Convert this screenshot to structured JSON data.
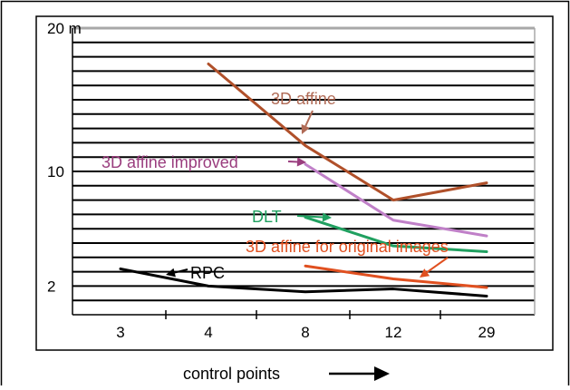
{
  "chart_data": {
    "type": "line",
    "categories": [
      "3",
      "4",
      "8",
      "12",
      "29"
    ],
    "y_ticks": [
      {
        "value": 2,
        "label": "2"
      },
      {
        "value": 10,
        "label": "10"
      },
      {
        "value": 20,
        "label": "20 m"
      }
    ],
    "ylim": [
      0,
      20
    ],
    "y_gridlines": [
      1,
      2,
      3,
      4,
      5,
      6,
      7,
      8,
      9,
      10,
      11,
      12,
      13,
      14,
      15,
      16,
      17,
      18,
      19
    ],
    "grid": true,
    "xlabel": "control points",
    "series": [
      {
        "name": "3D affine",
        "color": "#b0502a",
        "label_color": "#b06a55",
        "x": [
          4,
          8,
          12,
          29
        ],
        "y": [
          17.5,
          11.8,
          8.0,
          9.2
        ]
      },
      {
        "name": "3D affine improved",
        "color": "#c080c8",
        "label_color": "#9a3d7e",
        "x": [
          8,
          12,
          29
        ],
        "y": [
          10.5,
          6.6,
          5.5
        ]
      },
      {
        "name": "DLT",
        "color": "#20a060",
        "label_color": "#20a060",
        "x": [
          8,
          12,
          29
        ],
        "y": [
          6.8,
          4.8,
          4.4
        ]
      },
      {
        "name": "3D affine for original images",
        "color": "#e05020",
        "label_color": "#e05020",
        "x": [
          8,
          12,
          29
        ],
        "y": [
          3.4,
          2.5,
          1.9
        ]
      },
      {
        "name": "RPC",
        "color": "#000000",
        "label_color": "#000000",
        "x": [
          3,
          4,
          8,
          12,
          29
        ],
        "y": [
          3.2,
          2.0,
          1.6,
          1.8,
          1.3
        ]
      }
    ]
  }
}
